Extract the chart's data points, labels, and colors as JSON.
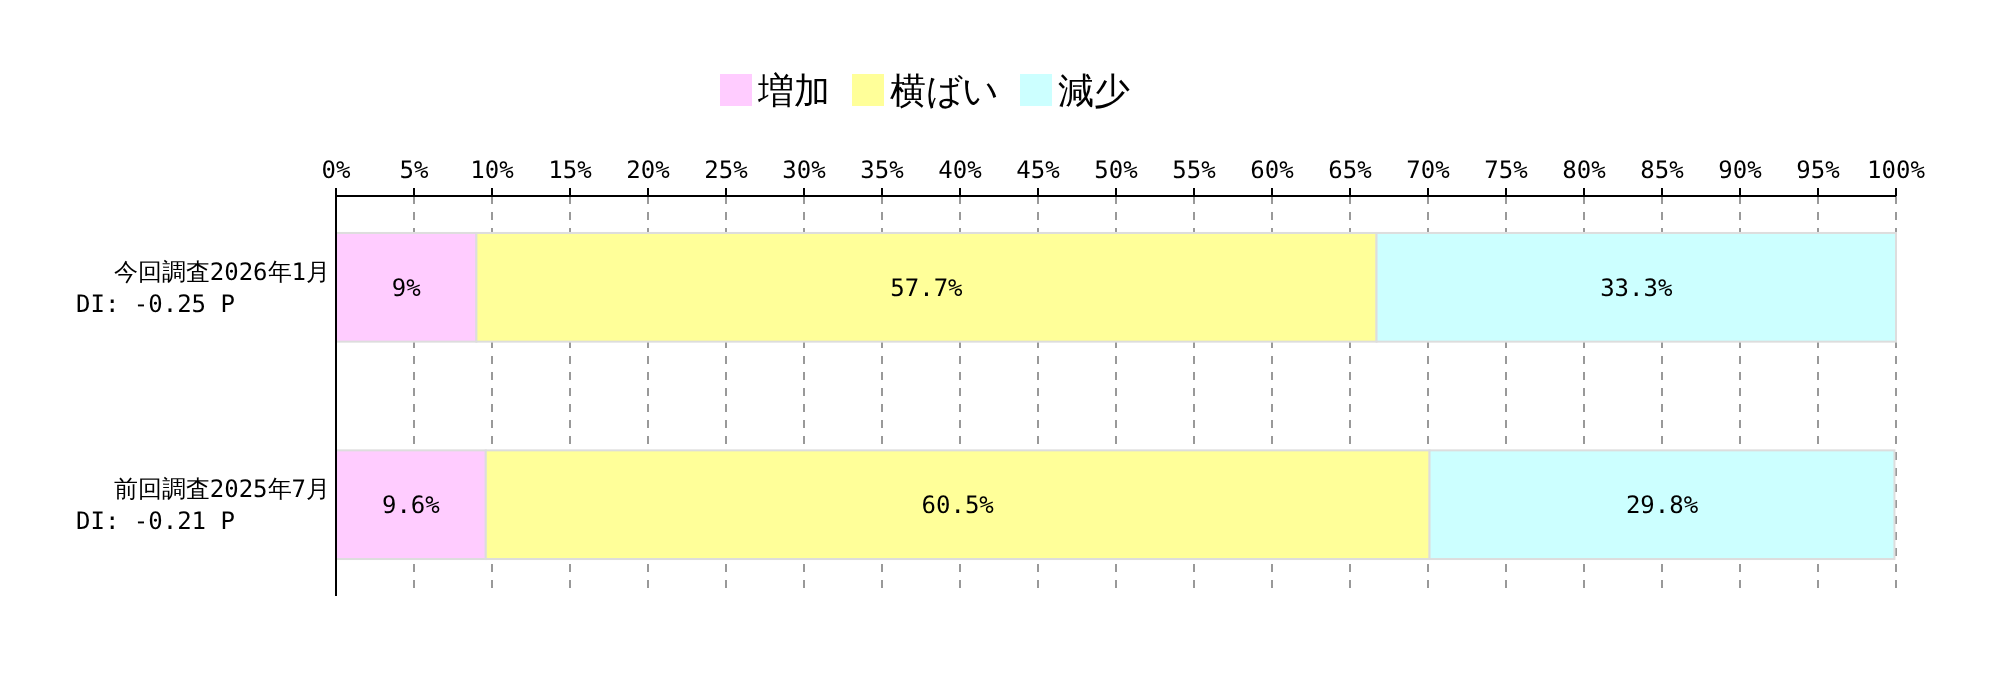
{
  "chart_data": {
    "type": "bar",
    "orientation": "horizontal",
    "stacked": true,
    "categories": [
      "今回調査2026年1月\n DI: -0.25 P",
      "前回調査2025年7月\n DI: -0.21 P"
    ],
    "series": [
      {
        "name": "増加",
        "color": "#ffccff",
        "values": [
          9,
          9.6
        ],
        "value_labels": [
          "9%",
          "9.6%"
        ]
      },
      {
        "name": "横ばい",
        "color": "#ffff99",
        "values": [
          57.7,
          60.5
        ],
        "value_labels": [
          "57.7%",
          "60.5%"
        ]
      },
      {
        "name": "減少",
        "color": "#ccffff",
        "values": [
          33.3,
          29.8
        ],
        "value_labels": [
          "33.3%",
          "29.8%"
        ]
      }
    ],
    "xlim": [
      0,
      100
    ],
    "xticks": [
      {
        "value": 0,
        "label": "0%"
      },
      {
        "value": 5,
        "label": "5%"
      },
      {
        "value": 10,
        "label": "10%"
      },
      {
        "value": 15,
        "label": "15%"
      },
      {
        "value": 20,
        "label": "20%"
      },
      {
        "value": 25,
        "label": "25%"
      },
      {
        "value": 30,
        "label": "30%"
      },
      {
        "value": 35,
        "label": "35%"
      },
      {
        "value": 40,
        "label": "40%"
      },
      {
        "value": 45,
        "label": "45%"
      },
      {
        "value": 50,
        "label": "50%"
      },
      {
        "value": 55,
        "label": "55%"
      },
      {
        "value": 60,
        "label": "60%"
      },
      {
        "value": 65,
        "label": "65%"
      },
      {
        "value": 70,
        "label": "70%"
      },
      {
        "value": 75,
        "label": "75%"
      },
      {
        "value": 80,
        "label": "80%"
      },
      {
        "value": 85,
        "label": "85%"
      },
      {
        "value": 90,
        "label": "90%"
      },
      {
        "value": 95,
        "label": "95%"
      },
      {
        "value": 100,
        "label": "100%"
      }
    ],
    "grid": "x",
    "legend": "top"
  }
}
